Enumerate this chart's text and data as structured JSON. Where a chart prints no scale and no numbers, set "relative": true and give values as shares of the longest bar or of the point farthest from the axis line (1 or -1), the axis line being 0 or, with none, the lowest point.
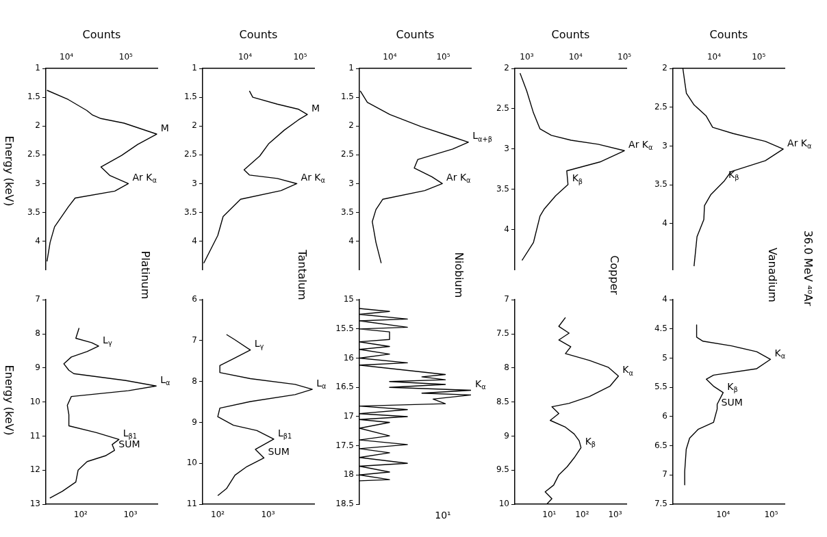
{
  "chart_data": [
    {
      "type": "line",
      "title": "Platinum",
      "xlabel": "Counts",
      "ylabel": "Energy (keV)",
      "log": "x",
      "color": "#000000",
      "marker": "none",
      "line_style": "solid",
      "x": [
        4700,
        10700,
        22000,
        27500,
        38000,
        93000,
        330000,
        158000,
        85000,
        38000,
        54000,
        110000,
        65000,
        14000,
        10800,
        6300,
        5300,
        4700
      ],
      "values": [
        1.38,
        1.54,
        1.73,
        1.81,
        1.87,
        1.95,
        2.14,
        2.32,
        2.51,
        2.71,
        2.86,
        3.0,
        3.13,
        3.25,
        3.4,
        3.75,
        4.02,
        4.35
      ],
      "xlim": [
        4500,
        340000
      ],
      "xticks": [
        {
          "value": 10000,
          "label": "10⁴"
        },
        {
          "value": 100000,
          "label": "10⁵"
        }
      ],
      "ylim": [
        4.5,
        1
      ],
      "yticks": [
        1,
        1.5,
        2,
        2.5,
        3,
        3.5,
        4
      ],
      "annotations": [
        {
          "text": "M",
          "x": 330000,
          "y": 2.14
        },
        {
          "text": "Ar K$_{α}$",
          "x": 110000,
          "y": 3.0
        }
      ]
    },
    {
      "type": "line",
      "ylabel": "Energy (keV)",
      "log": "x",
      "color": "#000000",
      "marker": "none",
      "line_style": "solid",
      "x": [
        93,
        80,
        166,
        230,
        135,
        65,
        46,
        58,
        73,
        810,
        3300,
        910,
        65,
        54,
        58,
        58,
        207,
        590,
        430,
        480,
        315,
        135,
        89,
        80,
        43,
        24
      ],
      "values": [
        7.83,
        8.13,
        8.26,
        8.36,
        8.52,
        8.68,
        8.88,
        9.07,
        9.17,
        9.37,
        9.53,
        9.67,
        9.84,
        10.1,
        10.37,
        10.7,
        10.9,
        11.1,
        11.25,
        11.42,
        11.58,
        11.75,
        12.0,
        12.35,
        12.62,
        12.82
      ],
      "xlim": [
        20,
        3500
      ],
      "xticks": [
        {
          "value": 100,
          "label": "10²"
        },
        {
          "value": 1000,
          "label": "10³"
        }
      ],
      "ylim": [
        13,
        7
      ],
      "yticks": [
        7,
        8,
        9,
        10,
        11,
        12,
        13
      ],
      "annotations": [
        {
          "text": "L$_{γ}$",
          "x": 230,
          "y": 8.36
        },
        {
          "text": "L$_{α}$",
          "x": 3300,
          "y": 9.53
        },
        {
          "text": "L$_{β1}$",
          "x": 590,
          "y": 11.1
        },
        {
          "text": "SUM",
          "x": 480,
          "y": 11.42
        }
      ]
    },
    {
      "type": "line",
      "title": "Tantalum",
      "xlabel": "Counts",
      "log": "x",
      "color": "#000000",
      "marker": "none",
      "line_style": "solid",
      "x": [
        12000,
        13800,
        38500,
        94000,
        135000,
        94000,
        51700,
        26700,
        18500,
        9600,
        12000,
        38500,
        87000,
        45000,
        8300,
        4000,
        3200,
        1780
      ],
      "values": [
        1.39,
        1.5,
        1.62,
        1.71,
        1.8,
        1.89,
        2.07,
        2.31,
        2.52,
        2.76,
        2.85,
        2.91,
        3.0,
        3.12,
        3.27,
        3.57,
        3.9,
        4.38
      ],
      "xlim": [
        1700,
        180000
      ],
      "xticks": [
        {
          "value": 10000,
          "label": "10⁴"
        },
        {
          "value": 100000,
          "label": "10⁵"
        }
      ],
      "ylim": [
        4.5,
        1
      ],
      "yticks": [
        1,
        1.5,
        2,
        2.5,
        3,
        3.5,
        4
      ],
      "annotations": [
        {
          "text": "M",
          "x": 135000,
          "y": 1.8
        },
        {
          "text": "Ar K$_{α}$",
          "x": 87000,
          "y": 3.0
        }
      ]
    },
    {
      "type": "line",
      "log": "x",
      "color": "#000000",
      "marker": "none",
      "line_style": "solid",
      "x": [
        149,
        220,
        445,
        205,
        110,
        110,
        445,
        3450,
        7600,
        3450,
        445,
        110,
        100,
        205,
        600,
        1300,
        560,
        830,
        380,
        220,
        149,
        100
      ],
      "values": [
        6.85,
        6.98,
        7.23,
        7.44,
        7.61,
        7.78,
        7.93,
        8.07,
        8.19,
        8.32,
        8.49,
        8.65,
        8.86,
        9.07,
        9.2,
        9.41,
        9.66,
        9.87,
        10.08,
        10.29,
        10.62,
        10.79
      ],
      "xlim": [
        50,
        8300
      ],
      "xticks": [
        {
          "value": 100,
          "label": "10²"
        },
        {
          "value": 1000,
          "label": "10³"
        }
      ],
      "ylim": [
        11,
        6
      ],
      "yticks": [
        6,
        7,
        8,
        9,
        10,
        11
      ],
      "annotations": [
        {
          "text": "L$_{γ}$",
          "x": 445,
          "y": 7.23
        },
        {
          "text": "L$_{α}$",
          "x": 7600,
          "y": 8.19
        },
        {
          "text": "L$_{β1}$",
          "x": 1300,
          "y": 9.41
        },
        {
          "text": "SUM",
          "x": 830,
          "y": 9.87
        }
      ]
    },
    {
      "type": "line",
      "title": "Niobium",
      "xlabel": "Counts",
      "log": "x",
      "color": "#000000",
      "marker": "none",
      "line_style": "solid",
      "x": [
        2800,
        3800,
        10000,
        38600,
        150000,
        295000,
        150000,
        33400,
        28600,
        61000,
        96000,
        45000,
        7400,
        5500,
        4700,
        5500,
        6900
      ],
      "values": [
        1.39,
        1.59,
        1.8,
        2.01,
        2.19,
        2.28,
        2.4,
        2.58,
        2.73,
        2.88,
        3.0,
        3.12,
        3.27,
        3.45,
        3.66,
        4.02,
        4.38
      ],
      "xlim": [
        2700,
        330000
      ],
      "xticks": [
        {
          "value": 10000,
          "label": "10⁴"
        },
        {
          "value": 100000,
          "label": "10⁵"
        }
      ],
      "ylim": [
        4.5,
        1
      ],
      "yticks": [
        1,
        1.5,
        2,
        2.5,
        3,
        3.5,
        4
      ],
      "annotations": [
        {
          "text": "L$_{α+β}$",
          "x": 295000,
          "y": 2.28
        },
        {
          "text": "Ar K$_{α}$",
          "x": 96000,
          "y": 3.0
        }
      ]
    },
    {
      "type": "line",
      "orientation": "horizontal",
      "relative": true,
      "color": "#000000",
      "marker": "none",
      "line_style": "solid",
      "x": [
        15.15,
        15.2,
        15.25,
        15.33,
        15.36,
        15.47,
        15.5,
        15.55,
        15.68,
        15.72,
        15.8,
        15.85,
        15.93,
        16.0,
        16.08,
        16.12,
        16.28,
        16.32,
        16.37,
        16.4,
        16.45,
        16.5,
        16.55,
        16.6,
        16.63,
        16.7,
        16.78,
        16.82,
        16.88,
        16.95,
        17.0,
        17.05,
        17.1,
        17.2,
        17.33,
        17.4,
        17.48,
        17.55,
        17.62,
        17.7,
        17.8,
        17.85,
        17.95,
        18.0,
        18.08,
        18.1
      ],
      "values": [
        0,
        0.27,
        0,
        0.43,
        0,
        0.43,
        0,
        0.27,
        0.27,
        0,
        0.27,
        0,
        0.27,
        0,
        0.43,
        0,
        0.77,
        0.56,
        0.77,
        0.27,
        0.77,
        0.27,
        1,
        0.56,
        1,
        0.66,
        0.77,
        0,
        0.43,
        0,
        0.43,
        0,
        0.27,
        0,
        0.27,
        0,
        0.43,
        0,
        0.27,
        0,
        0.43,
        0,
        0.27,
        0,
        0.27,
        0
      ],
      "ylim": [
        18.5,
        15
      ],
      "yticks": [
        15,
        15.5,
        16,
        16.5,
        17,
        17.5,
        18,
        18.5
      ],
      "annotations": [
        "10¹",
        {
          "text": "K$_{α}$",
          "x": 1,
          "y": 16.55
        }
      ]
    },
    {
      "type": "line",
      "title": "Copper",
      "xlabel": "Counts",
      "log": "x",
      "color": "#000000",
      "marker": "none",
      "line_style": "solid",
      "x": [
        730,
        1000,
        1370,
        1870,
        3200,
        8100,
        29000,
        100000,
        31500,
        6600,
        7000,
        3900,
        2300,
        1870,
        1370,
        800
      ],
      "values": [
        2.06,
        2.28,
        2.55,
        2.75,
        2.83,
        2.89,
        2.94,
        3.02,
        3.16,
        3.27,
        3.44,
        3.58,
        3.74,
        3.83,
        4.16,
        4.38
      ],
      "xlim": [
        570,
        110000
      ],
      "xticks": [
        {
          "value": 1000,
          "label": "10³"
        },
        {
          "value": 10000,
          "label": "10⁴"
        },
        {
          "value": 100000,
          "label": "10⁵"
        }
      ],
      "ylim": [
        4.5,
        2
      ],
      "yticks": [
        2,
        2.5,
        3,
        3.5,
        4
      ],
      "annotations": [
        {
          "text": "Ar K$_{α}$",
          "x": 100000,
          "y": 3.02
        },
        {
          "text": "K$_{β}$",
          "x": 7000,
          "y": 3.44
        }
      ]
    },
    {
      "type": "line",
      "log": "x",
      "color": "#000000",
      "marker": "none",
      "line_style": "solid",
      "x": [
        31,
        19.5,
        40,
        19.5,
        45,
        31,
        166,
        615,
        1260,
        690,
        166,
        40,
        12,
        19.5,
        10.7,
        31,
        57,
        81,
        92,
        57,
        35,
        19.5,
        13.6,
        7.5,
        12,
        8.4
      ],
      "values": [
        7.26,
        7.39,
        7.49,
        7.59,
        7.69,
        7.79,
        7.89,
        7.99,
        8.12,
        8.27,
        8.42,
        8.52,
        8.57,
        8.67,
        8.77,
        8.87,
        8.97,
        9.07,
        9.17,
        9.32,
        9.45,
        9.57,
        9.72,
        9.82,
        9.92,
        10.0
      ],
      "xlim": [
        0.9,
        2200
      ],
      "xticks": [
        {
          "value": 10,
          "label": "10¹"
        },
        {
          "value": 100,
          "label": "10²"
        },
        {
          "value": 1000,
          "label": "10³"
        }
      ],
      "ylim": [
        10,
        7
      ],
      "yticks": [
        7,
        7.5,
        8,
        8.5,
        9,
        9.5,
        10
      ],
      "annotations": [
        {
          "text": "K$_{α}$",
          "x": 1260,
          "y": 8.12
        },
        {
          "text": "K$_{β}$",
          "x": 92,
          "y": 9.17
        }
      ]
    },
    {
      "type": "line",
      "title": "Vanadium",
      "xlabel": "Counts",
      "log": "x",
      "color": "#000000",
      "marker": "none",
      "line_style": "solid",
      "x": [
        2000,
        2250,
        2400,
        3560,
        6600,
        9300,
        27000,
        141000,
        355000,
        141000,
        24000,
        17000,
        8400,
        6100,
        5900,
        4150,
        3560
      ],
      "values": [
        2.0,
        2.21,
        2.32,
        2.47,
        2.61,
        2.76,
        2.84,
        2.94,
        3.04,
        3.19,
        3.33,
        3.45,
        3.63,
        3.77,
        3.95,
        4.17,
        4.55
      ],
      "xlim": [
        1200,
        380000
      ],
      "xticks": [
        {
          "value": 10000,
          "label": "10⁴"
        },
        {
          "value": 100000,
          "label": "10⁵"
        }
      ],
      "ylim": [
        4.6,
        2
      ],
      "yticks": [
        2,
        2.5,
        3,
        3.5,
        4
      ],
      "annotations": [
        "36.0 MeV ⁴⁰Ar",
        {
          "text": "Ar K$_{α}$",
          "x": 355000,
          "y": 3.04
        },
        {
          "text": "K$_{β}$",
          "x": 17000,
          "y": 3.45
        }
      ]
    },
    {
      "type": "line",
      "log": "x",
      "color": "#000000",
      "marker": "none",
      "line_style": "solid",
      "x": [
        2800,
        2800,
        3800,
        15000,
        50000,
        97000,
        50000,
        6300,
        4450,
        6300,
        10000,
        7500,
        7500,
        6300,
        3000,
        2000,
        1700,
        1580,
        1580
      ],
      "values": [
        4.43,
        4.64,
        4.71,
        4.79,
        4.89,
        5.02,
        5.18,
        5.29,
        5.36,
        5.48,
        5.59,
        5.79,
        5.87,
        6.1,
        6.22,
        6.37,
        6.56,
        6.94,
        7.17
      ],
      "xlim": [
        900,
        190000
      ],
      "xticks": [
        {
          "value": 10000,
          "label": "10⁴"
        },
        {
          "value": 100000,
          "label": "10⁵"
        }
      ],
      "ylim": [
        7.5,
        4
      ],
      "yticks": [
        4,
        4.5,
        5,
        5.5,
        6,
        6.5,
        7,
        7.5
      ],
      "annotations": [
        {
          "text": "K$_{α}$",
          "x": 97000,
          "y": 5.02
        },
        {
          "text": "K$_{β}$",
          "x": 10000,
          "y": 5.59
        },
        {
          "text": "SUM",
          "x": 7500,
          "y": 5.87
        }
      ]
    }
  ]
}
